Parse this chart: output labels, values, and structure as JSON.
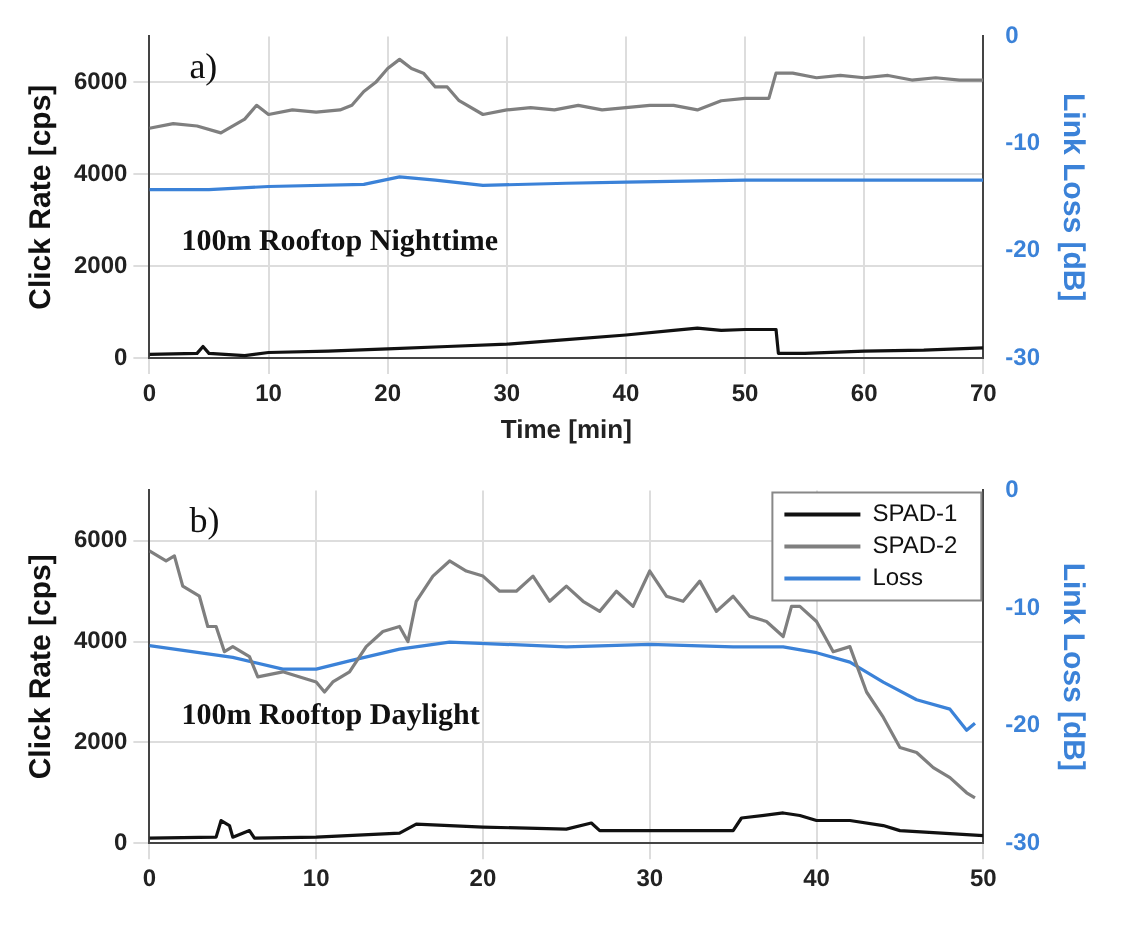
{
  "chart_data": [
    {
      "type": "line",
      "xlabel": "Time [min]",
      "ylabel": "Click Rate [cps]",
      "y2label": "Link Loss [dB]",
      "annotations": [
        "a)",
        "100m Rooftop Nighttime"
      ],
      "xlim": [
        0,
        70
      ],
      "xticks": [
        0,
        10,
        20,
        30,
        40,
        50,
        60,
        70
      ],
      "ylim": [
        0,
        7000
      ],
      "yticks": [
        0,
        2000,
        4000,
        6000
      ],
      "y2lim": [
        -30,
        0
      ],
      "y2ticks": [
        -30,
        -20,
        -10,
        0
      ],
      "grid": true,
      "legend": false,
      "marker": "none",
      "line_style": "solid",
      "series": [
        {
          "color": "#111111",
          "x": [
            0,
            4,
            4.5,
            5,
            8,
            10,
            15,
            20,
            25,
            30,
            35,
            40,
            44,
            46,
            48,
            50,
            52.6,
            52.8,
            55,
            60,
            65,
            70
          ],
          "values": [
            80,
            100,
            250,
            100,
            50,
            120,
            150,
            200,
            250,
            300,
            400,
            500,
            600,
            650,
            600,
            620,
            620,
            100,
            100,
            150,
            170,
            220
          ]
        },
        {
          "color": "#7f7f7f",
          "x": [
            0,
            2,
            4,
            6,
            8,
            9,
            10,
            12,
            14,
            16,
            17,
            18,
            19,
            20,
            21,
            22,
            23,
            24,
            25,
            26,
            28,
            30,
            32,
            34,
            36,
            38,
            40,
            42,
            44,
            46,
            48,
            50,
            52,
            52.6,
            54,
            56,
            58,
            60,
            62,
            64,
            66,
            68,
            70
          ],
          "values": [
            5000,
            5100,
            5050,
            4900,
            5200,
            5500,
            5300,
            5400,
            5350,
            5400,
            5500,
            5800,
            6000,
            6300,
            6500,
            6300,
            6200,
            5900,
            5900,
            5600,
            5300,
            5400,
            5450,
            5400,
            5500,
            5400,
            5450,
            5500,
            5500,
            5400,
            5600,
            5650,
            5650,
            6200,
            6200,
            6100,
            6150,
            6100,
            6150,
            6050,
            6100,
            6050,
            6050
          ]
        },
        {
          "color": "#3b82d8",
          "axis": "y2",
          "x": [
            0,
            5,
            10,
            18,
            21,
            24,
            28,
            35,
            40,
            50,
            60,
            70
          ],
          "values": [
            -14.3,
            -14.3,
            -14.0,
            -13.8,
            -13.1,
            -13.4,
            -13.9,
            -13.7,
            -13.6,
            -13.4,
            -13.4,
            -13.4
          ]
        }
      ]
    },
    {
      "type": "line",
      "ylabel": "Click Rate [cps]",
      "y2label": "Link Loss [dB]",
      "annotations": [
        "b)",
        "100m Rooftop Daylight"
      ],
      "xlim": [
        0,
        50
      ],
      "xticks": [
        0,
        10,
        20,
        30,
        40,
        50
      ],
      "ylim": [
        0,
        7000
      ],
      "yticks": [
        0,
        2000,
        4000,
        6000
      ],
      "y2lim": [
        -30,
        0
      ],
      "y2ticks": [
        -30,
        -20,
        -10,
        0
      ],
      "grid": true,
      "legend": "top right",
      "marker": "none",
      "line_style": "solid",
      "series": [
        {
          "name": "SPAD-1",
          "color": "#111111",
          "x": [
            0,
            4,
            4.3,
            4.8,
            5,
            6,
            6.3,
            10,
            15,
            16,
            20,
            25,
            26.5,
            27,
            30,
            35,
            35.5,
            38,
            39,
            40,
            42,
            44,
            45,
            50
          ],
          "values": [
            100,
            120,
            450,
            350,
            120,
            250,
            100,
            120,
            200,
            380,
            320,
            280,
            400,
            250,
            250,
            250,
            500,
            600,
            550,
            450,
            450,
            350,
            250,
            150
          ]
        },
        {
          "name": "SPAD-2",
          "color": "#7f7f7f",
          "x": [
            0,
            1,
            1.5,
            2,
            3,
            3.5,
            4,
            4.5,
            5,
            6,
            6.5,
            8,
            10,
            10.5,
            11,
            12,
            13,
            14,
            15,
            15.5,
            16,
            17,
            18,
            19,
            20,
            21,
            22,
            23,
            24,
            25,
            26,
            27,
            28,
            29,
            30,
            31,
            32,
            33,
            34,
            35,
            36,
            37,
            38,
            38.5,
            39,
            40,
            41,
            42,
            43,
            44,
            45,
            46,
            47,
            48,
            49,
            49.5
          ],
          "values": [
            5800,
            5600,
            5700,
            5100,
            4900,
            4300,
            4300,
            3800,
            3900,
            3700,
            3300,
            3400,
            3200,
            3000,
            3200,
            3400,
            3900,
            4200,
            4300,
            4000,
            4800,
            5300,
            5600,
            5400,
            5300,
            5000,
            5000,
            5300,
            4800,
            5100,
            4800,
            4600,
            5000,
            4700,
            5400,
            4900,
            4800,
            5200,
            4600,
            4900,
            4500,
            4400,
            4100,
            4700,
            4700,
            4400,
            3800,
            3900,
            3000,
            2500,
            1900,
            1800,
            1500,
            1300,
            1000,
            900
          ]
        },
        {
          "name": "Loss",
          "color": "#3b82d8",
          "axis": "y2",
          "x": [
            0,
            5,
            8,
            10,
            12,
            15,
            18,
            25,
            30,
            35,
            38,
            40,
            42,
            44,
            46,
            48,
            49,
            49.5
          ],
          "values": [
            -13.2,
            -14.2,
            -15.2,
            -15.2,
            -14.5,
            -13.5,
            -12.9,
            -13.3,
            -13.1,
            -13.3,
            -13.3,
            -13.8,
            -14.6,
            -16.3,
            -17.8,
            -18.6,
            -20.4,
            -19.8
          ]
        }
      ]
    }
  ]
}
